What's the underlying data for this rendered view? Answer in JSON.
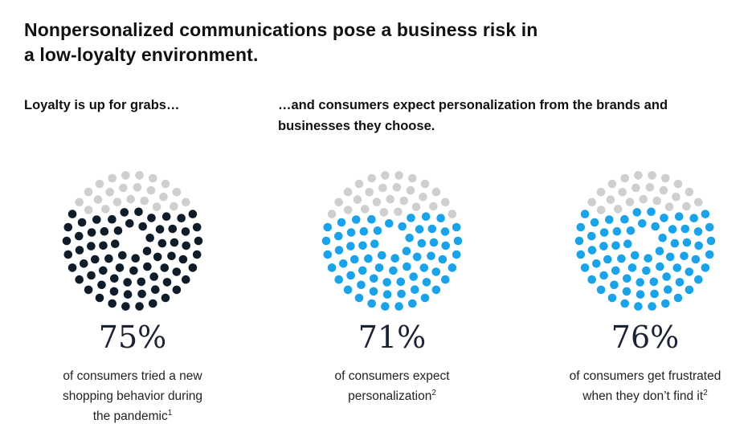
{
  "header": {
    "title_line1": "Nonpersonalized communications pose a business risk in",
    "title_line2": "a low-loyalty environment."
  },
  "subtitles": {
    "left": "Loyalty is up for grabs…",
    "right_line1": "…and consumers expect personalization from the brands and",
    "right_line2": "businesses they choose."
  },
  "colors": {
    "background_dot": "#cfcfcf",
    "dark": "#0f1c2a",
    "blue": "#1aa3e8"
  },
  "chart_data": [
    {
      "type": "dot-matrix",
      "value_percent": 75,
      "label": "75%",
      "desc_lines": [
        "of consumers tried a new",
        "shopping behavior during",
        "the pandemic"
      ],
      "footnote": "1",
      "color": "#0f1c2a"
    },
    {
      "type": "dot-matrix",
      "value_percent": 71,
      "label": "71%",
      "desc_lines": [
        "of consumers expect",
        "personalization"
      ],
      "footnote": "2",
      "color": "#1aa3e8"
    },
    {
      "type": "dot-matrix",
      "value_percent": 76,
      "label": "76%",
      "desc_lines": [
        "of consumers get frustrated",
        "when they don’t find it"
      ],
      "footnote": "2",
      "color": "#1aa3e8"
    }
  ]
}
